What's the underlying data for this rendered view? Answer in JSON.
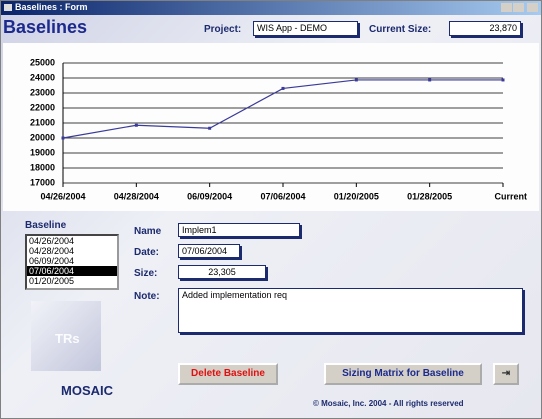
{
  "window": {
    "title": "Baselines : Form"
  },
  "header": {
    "title": "Baselines",
    "project_label": "Project:",
    "project": "WIS App - DEMO",
    "current_size_label": "Current Size:",
    "current_size": "23,870"
  },
  "chart_data": {
    "type": "line",
    "categories": [
      "04/26/2004",
      "04/28/2004",
      "06/09/2004",
      "07/06/2004",
      "01/20/2005",
      "01/28/2005",
      "Current"
    ],
    "series": [
      {
        "color": "#3a3a9a",
        "values": [
          20000,
          20850,
          20650,
          23305,
          23870,
          23870,
          23870
        ]
      }
    ],
    "ylim": [
      17000,
      25000
    ],
    "yticks": [
      17000,
      18000,
      19000,
      20000,
      21000,
      22000,
      23000,
      24000,
      25000
    ],
    "grid": true
  },
  "baseline": {
    "label": "Baseline",
    "items": [
      "04/26/2004",
      "04/28/2004",
      "06/09/2004",
      "07/06/2004",
      "01/20/2005"
    ],
    "selected": 3
  },
  "form": {
    "name_label": "Name",
    "name": "Implem1",
    "date_label": "Date:",
    "date": "07/06/2004",
    "size_label": "Size:",
    "size": "23,305",
    "note_label": "Note:",
    "note": "Added implementation req"
  },
  "buttons": {
    "delete": "Delete Baseline",
    "sizing": "Sizing Matrix for Baseline"
  },
  "logo": {
    "badge": "TRs",
    "name": "MOSAIC"
  },
  "footer": "© Mosaic, Inc. 2004 - All  rights reserved"
}
